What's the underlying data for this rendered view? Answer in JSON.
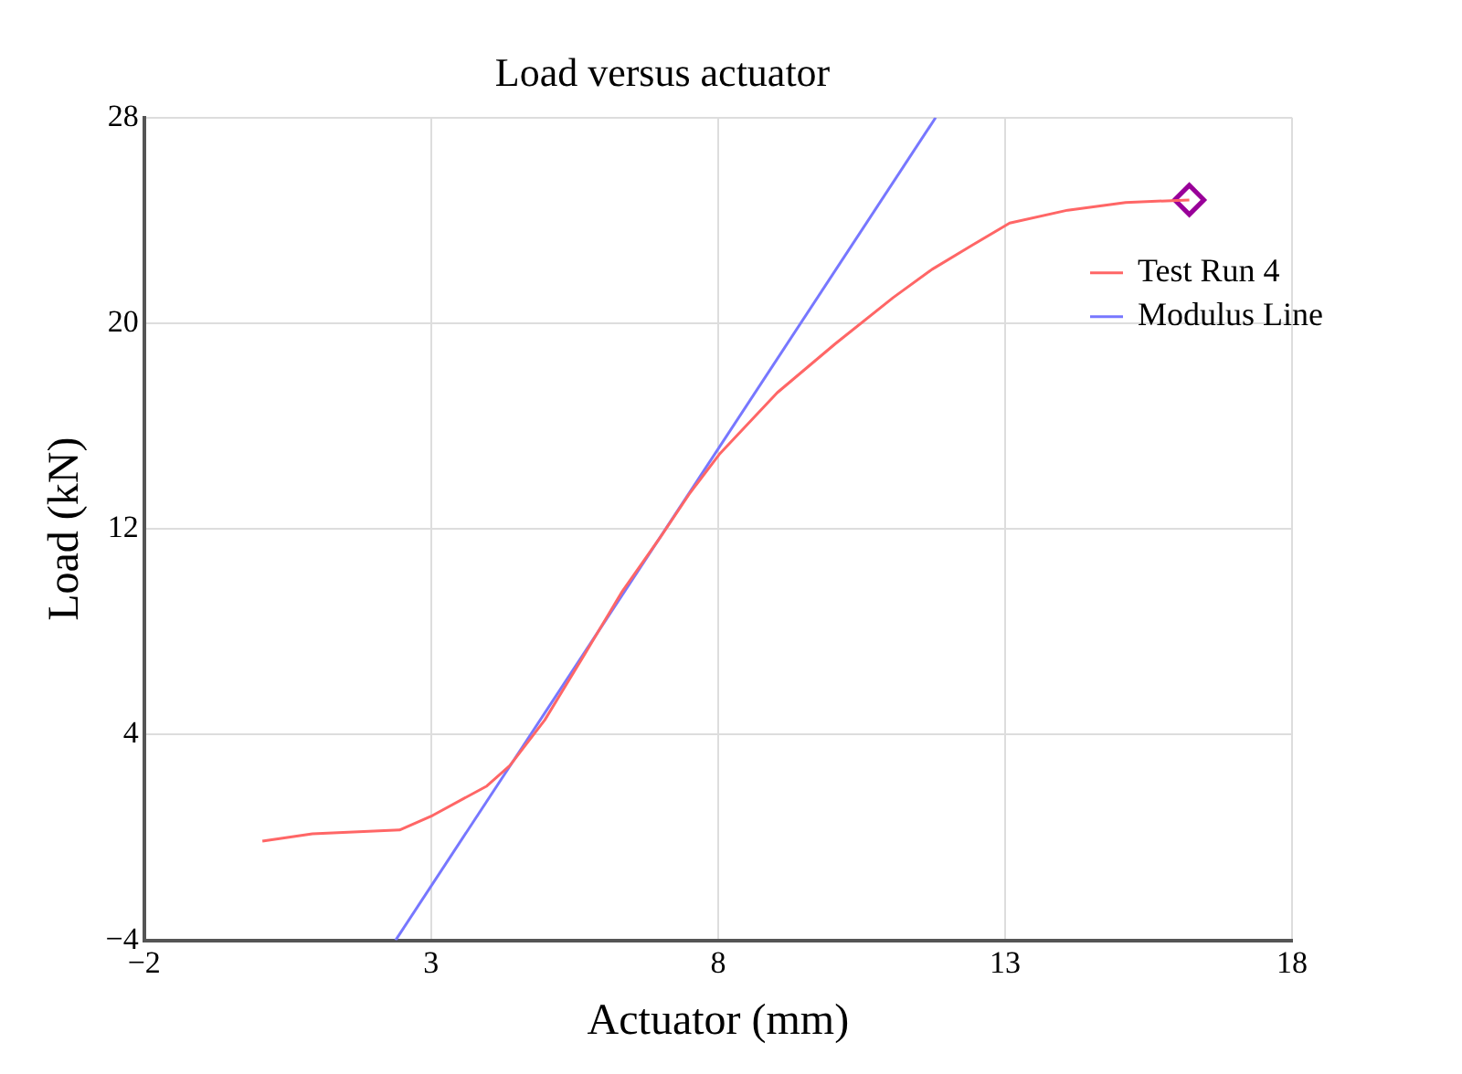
{
  "chart_data": {
    "type": "line",
    "title": "Load versus actuator",
    "xlabel": "Actuator (mm)",
    "ylabel": "Load (kN)",
    "xlim": [
      -2,
      18
    ],
    "xticks": [
      -2,
      3,
      8,
      13,
      18
    ],
    "ylim": [
      -4,
      28
    ],
    "yticks": [
      -4,
      4,
      12,
      20,
      28
    ],
    "grid": true,
    "legend": "top right",
    "marker": "none",
    "line_style": "solid",
    "series": [
      {
        "name": "Test Run 4",
        "color": "#ff6666",
        "x": [
          0.06,
          0.93,
          2.45,
          3.03,
          3.97,
          4.37,
          4.98,
          5.66,
          6.33,
          7.0,
          7.51,
          8.02,
          9.03,
          10.04,
          11.05,
          11.73,
          12.4,
          13.08,
          14.09,
          15.1,
          16.21
        ],
        "values": [
          -0.14,
          0.14,
          0.29,
          0.86,
          2.0,
          2.79,
          4.57,
          7.07,
          9.57,
          11.7,
          13.4,
          14.9,
          17.3,
          19.2,
          21.0,
          22.1,
          23.0,
          23.9,
          24.4,
          24.7,
          24.8
        ]
      },
      {
        "name": "Modulus Line",
        "color": "#7777ff",
        "x": [
          2.38,
          11.79
        ],
        "values": [
          -4,
          28
        ]
      },
      {
        "type": "scatter",
        "color": "#990099",
        "marker": "diamond",
        "x": [
          16.21
        ],
        "values": [
          24.8
        ]
      }
    ]
  }
}
